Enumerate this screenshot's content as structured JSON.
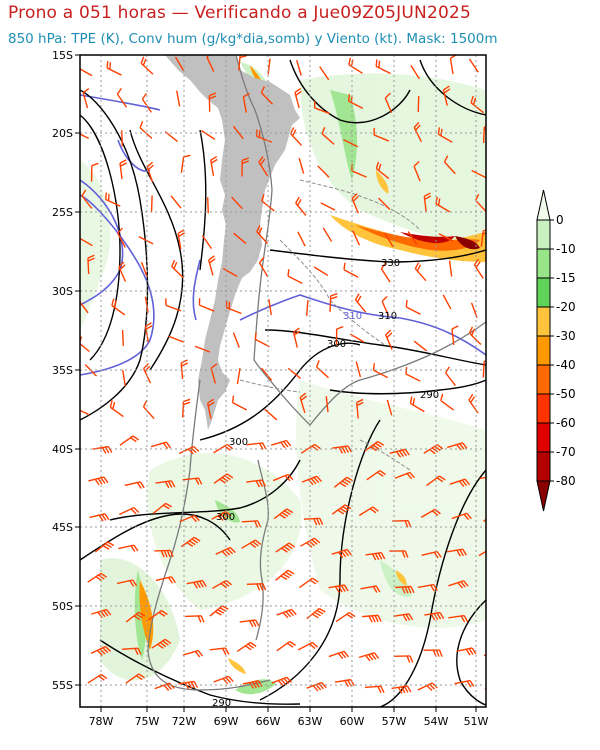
{
  "header": {
    "title": "Prono a 051 horas — Verificando a Jue09Z05JUN2025",
    "subtitle": "850 hPa: TPE (K), Conv hum (g/kg*dia,somb) y Viento (kt). Mask: 1500m"
  },
  "map": {
    "lat_labels": [
      "15S",
      "20S",
      "25S",
      "30S",
      "35S",
      "40S",
      "45S",
      "50S",
      "55S"
    ],
    "lon_labels": [
      "78W",
      "75W",
      "72W",
      "69W",
      "66W",
      "63W",
      "60W",
      "57W",
      "54W",
      "51W"
    ],
    "contour_labels": {
      "c330": "330",
      "c310a": "310",
      "c310b": "310",
      "c300a": "300",
      "c300b": "300",
      "c300c": "300",
      "c290a": "290",
      "c290b": "290"
    },
    "colors": {
      "mask": "#c0c0c0",
      "wind_barb": "#ff4000",
      "tpe_contour": "#000000",
      "tpe_310_contour": "#6060d8",
      "grid": "#9a9a9a",
      "coast": "#7a7a7a"
    }
  },
  "colorbar": {
    "labels": [
      "0",
      "-10",
      "-15",
      "-20",
      "-30",
      "-40",
      "-50",
      "-60",
      "-70",
      "-80"
    ],
    "colors": [
      "#f0fbec",
      "#c8f0c0",
      "#98e488",
      "#5fd35a",
      "#ffc33c",
      "#ff9900",
      "#ff6a00",
      "#ff3300",
      "#e00000",
      "#b40000",
      "#8a0000"
    ]
  }
}
